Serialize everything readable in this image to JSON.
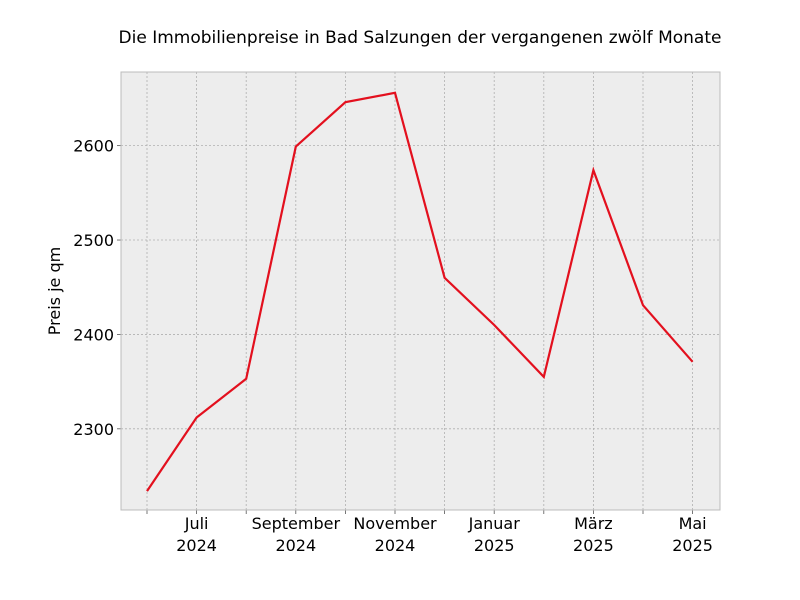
{
  "chart_data": {
    "type": "line",
    "title": "Die Immobilienpreise in Bad Salzungen der vergangenen zwölf Monate",
    "xlabel": "",
    "ylabel": "Preis je qm",
    "x": [
      "2024-06",
      "2024-07",
      "2024-08",
      "2024-09",
      "2024-10",
      "2024-11",
      "2024-12",
      "2025-01",
      "2025-02",
      "2025-03",
      "2025-04",
      "2025-05"
    ],
    "series": [
      {
        "color": "#e3101e",
        "values": [
          2234,
          2312,
          2353,
          2599,
          2646,
          2656,
          2460,
          2410,
          2355,
          2574,
          2431,
          2371
        ]
      }
    ],
    "ylim": [
      2214,
      2678
    ],
    "yticks": [
      2300,
      2400,
      2500,
      2600
    ],
    "xticks": [
      {
        "x": "2024-07",
        "label": [
          "Juli",
          "2024"
        ]
      },
      {
        "x": "2024-09",
        "label": [
          "September",
          "2024"
        ]
      },
      {
        "x": "2024-11",
        "label": [
          "November",
          "2024"
        ]
      },
      {
        "x": "2025-01",
        "label": [
          "Januar",
          "2025"
        ]
      },
      {
        "x": "2025-03",
        "label": [
          "März",
          "2025"
        ]
      },
      {
        "x": "2025-05",
        "label": [
          "Mai",
          "2025"
        ]
      }
    ],
    "grid": true,
    "background": "#ededed",
    "grid_color": "#b0b0b0"
  }
}
